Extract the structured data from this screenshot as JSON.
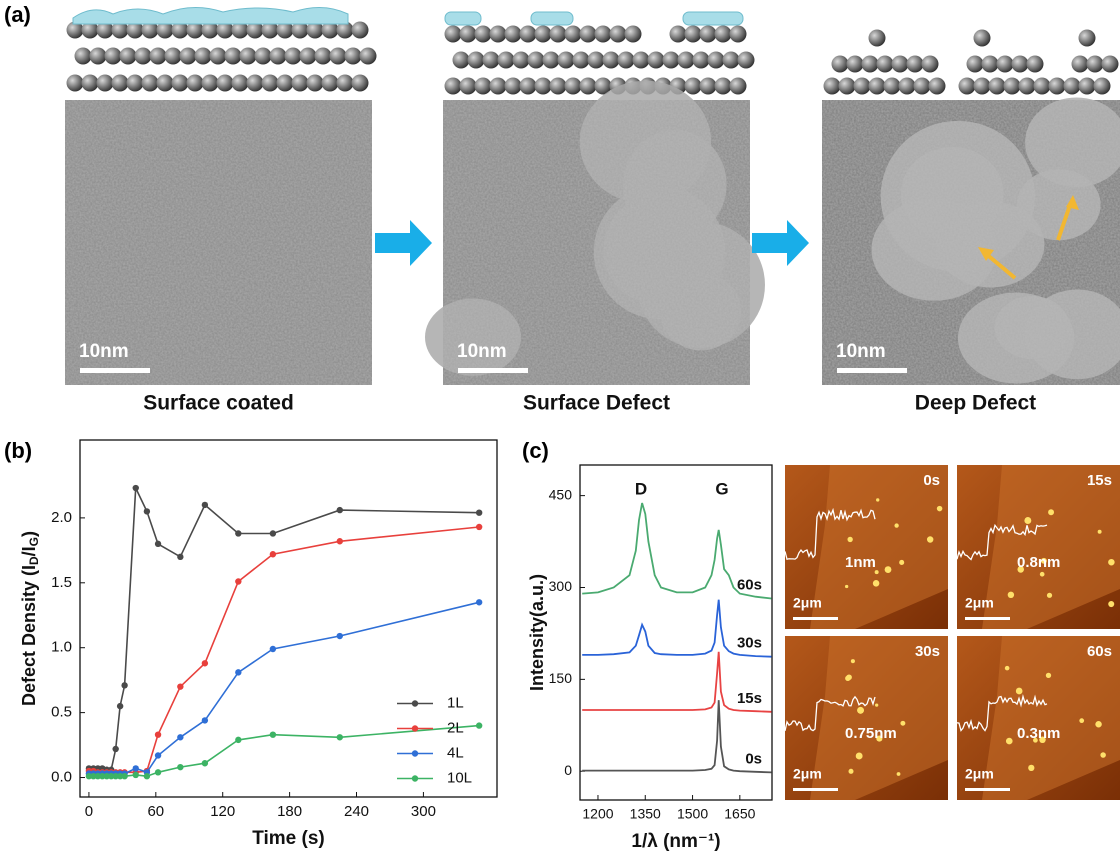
{
  "panel_labels": [
    "(a)",
    "(b)",
    "(c)"
  ],
  "tem": [
    {
      "scale_bar": "10nm",
      "caption": "Surface coated"
    },
    {
      "scale_bar": "10nm",
      "caption": "Surface Defect"
    },
    {
      "scale_bar": "10nm",
      "caption": "Deep Defect"
    }
  ],
  "afm": [
    {
      "time": "0s",
      "height": "1nm",
      "scale_bar": "2μm"
    },
    {
      "time": "15s",
      "height": "0.8nm",
      "scale_bar": "2μm"
    },
    {
      "time": "30s",
      "height": "0.75nm",
      "scale_bar": "2μm"
    },
    {
      "time": "60s",
      "height": "0.3nm",
      "scale_bar": "2μm"
    }
  ],
  "chart_data": [
    {
      "type": "line",
      "x_label": "Time (s)",
      "y_label": [
        "Defect Density (I",
        "D",
        "/I",
        "G",
        ")"
      ],
      "x": [
        0,
        4,
        8,
        12,
        16,
        20,
        24,
        28,
        32,
        42,
        52,
        62,
        82,
        104,
        134,
        165,
        225,
        350
      ],
      "series": [
        {
          "name": "1L",
          "color": "#4a4a4a",
          "values": [
            0.07,
            0.07,
            0.07,
            0.07,
            0.06,
            0.06,
            0.22,
            0.55,
            0.71,
            2.23,
            2.05,
            1.8,
            1.7,
            2.1,
            1.88,
            1.88,
            2.06,
            2.04
          ]
        },
        {
          "name": "2L",
          "color": "#e8403c",
          "values": [
            0.05,
            0.05,
            0.04,
            0.04,
            0.04,
            0.04,
            0.04,
            0.04,
            0.04,
            0.04,
            0.05,
            0.33,
            0.7,
            0.88,
            1.51,
            1.72,
            1.82,
            1.93
          ]
        },
        {
          "name": "4L",
          "color": "#2f6fd6",
          "values": [
            0.03,
            0.03,
            0.03,
            0.03,
            0.03,
            0.03,
            0.03,
            0.03,
            0.03,
            0.07,
            0.04,
            0.17,
            0.31,
            0.44,
            0.81,
            0.99,
            1.09,
            1.35
          ]
        },
        {
          "name": "10L",
          "color": "#3cb364",
          "values": [
            0.01,
            0.01,
            0.01,
            0.01,
            0.01,
            0.01,
            0.01,
            0.01,
            0.01,
            0.02,
            0.01,
            0.04,
            0.08,
            0.11,
            0.29,
            0.33,
            0.31,
            0.4
          ]
        }
      ],
      "xlim": [
        -8,
        366
      ],
      "ylim": [
        -0.15,
        2.6
      ],
      "xticks": [
        0,
        60,
        120,
        180,
        240,
        300
      ],
      "yticks": [
        {
          "value": 0,
          "label": "0.0"
        },
        0.5,
        {
          "value": 1,
          "label": "1.0"
        },
        1.5,
        {
          "value": 2,
          "label": "2.0"
        }
      ],
      "markers": true,
      "legend": "lower right"
    },
    {
      "type": "line",
      "x_label": "1/λ (nm⁻¹)",
      "y_label": "Intensity(a.u.)",
      "annotations": [
        "D",
        "G"
      ],
      "x": [
        1150,
        1200,
        1250,
        1300,
        1320,
        1330,
        1340,
        1350,
        1360,
        1380,
        1400,
        1450,
        1500,
        1540,
        1560,
        1570,
        1578,
        1583,
        1590,
        1600,
        1615,
        1630,
        1650,
        1700,
        1750
      ],
      "series": [
        {
          "name": "0s",
          "color": "#555555",
          "values": [
            1,
            1,
            1,
            1,
            1,
            1,
            1,
            1,
            1,
            1,
            1,
            1,
            1,
            2,
            4,
            10,
            50,
            116,
            40,
            8,
            3,
            1,
            0,
            -1,
            -2
          ]
        },
        {
          "name": "15s",
          "color": "#e84343",
          "values": [
            100,
            100,
            100,
            100,
            100,
            100,
            100,
            100,
            100,
            100,
            100,
            100,
            100,
            101,
            104,
            112,
            160,
            195,
            130,
            108,
            102,
            100,
            99,
            98,
            97
          ]
        },
        {
          "name": "30s",
          "color": "#2a63d8",
          "values": [
            190,
            190,
            191,
            194,
            205,
            222,
            239,
            228,
            205,
            193,
            191,
            190,
            190,
            192,
            197,
            210,
            255,
            280,
            235,
            205,
            196,
            192,
            190,
            188,
            187
          ]
        },
        {
          "name": "60s",
          "color": "#4aaa70",
          "values": [
            290,
            292,
            300,
            320,
            360,
            410,
            438,
            420,
            375,
            320,
            300,
            292,
            292,
            300,
            320,
            345,
            380,
            394,
            370,
            330,
            320,
            300,
            290,
            285,
            282
          ]
        }
      ],
      "xlim": [
        1143,
        1752
      ],
      "ylim": [
        -47,
        500
      ],
      "xticks": [
        1200,
        1350,
        1500,
        1650
      ],
      "yticks": [
        0,
        150,
        300,
        450
      ],
      "markers": false
    }
  ]
}
